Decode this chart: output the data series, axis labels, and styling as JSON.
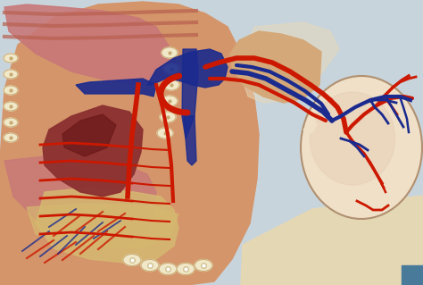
{
  "bg_color": "#c8d4dc",
  "body_skin": "#d4956a",
  "body_skin_light": "#e8c4a0",
  "lung_pink": "#c87878",
  "lung_inner": "#d49090",
  "heart_red": "#8b3030",
  "heart_dark": "#6b1818",
  "spine_cream": "#f0e8c8",
  "spine_border": "#c8a870",
  "artery_red": "#cc1800",
  "vein_blue": "#1a2a8e",
  "vein_blue2": "#2a3a9e",
  "neck_skin": "#d4a878",
  "head_fill": "#f0e0c8",
  "head_inner": "#e8d0b8",
  "chest_wall": "#c8906a",
  "abdom_yellow": "#d4b870",
  "muscle_red": "#b86050",
  "bg_yellow": "#e8d898",
  "figsize": [
    4.74,
    3.19
  ],
  "dpi": 100
}
